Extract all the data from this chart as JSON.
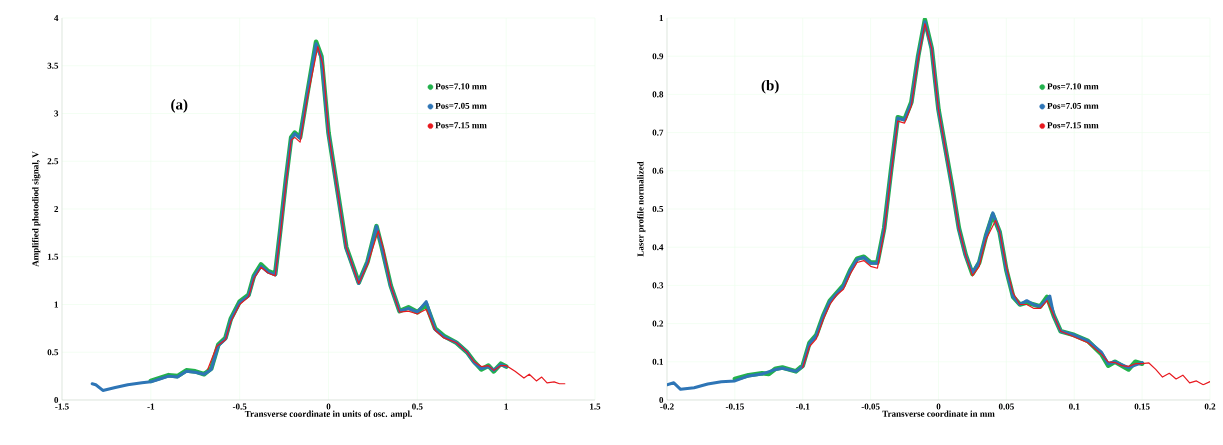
{
  "chart_data": [
    {
      "type": "line",
      "xlabel": "Transverse coordinate in units of osc. ampl.",
      "ylabel": "Amplified photodiod signal, V",
      "annotations": [
        "(a)"
      ],
      "xlim": [
        -1.5,
        1.5
      ],
      "ylim": [
        0,
        4
      ],
      "xticks": [
        -1.5,
        -1,
        -0.5,
        0,
        0.5,
        1,
        1.5
      ],
      "yticks": [
        0,
        0.5,
        1,
        1.5,
        2,
        2.5,
        3,
        3.5,
        4
      ],
      "grid": true,
      "legend": "top right",
      "series": [
        {
          "name": "Pos=7.10 mm",
          "color": "#22b14c",
          "x": [
            -1.0,
            -0.95,
            -0.9,
            -0.85,
            -0.8,
            -0.75,
            -0.7,
            -0.66,
            -0.62,
            -0.58,
            -0.55,
            -0.5,
            -0.45,
            -0.42,
            -0.38,
            -0.34,
            -0.3,
            -0.27,
            -0.24,
            -0.21,
            -0.19,
            -0.16,
            -0.12,
            -0.07,
            -0.04,
            0.0,
            0.05,
            0.1,
            0.17,
            0.22,
            0.27,
            0.3,
            0.35,
            0.4,
            0.45,
            0.5,
            0.55,
            0.6,
            0.65,
            0.72,
            0.78,
            0.82,
            0.86,
            0.9,
            0.93,
            0.97,
            1.0
          ],
          "values": [
            0.2,
            0.23,
            0.26,
            0.25,
            0.31,
            0.3,
            0.27,
            0.33,
            0.58,
            0.65,
            0.85,
            1.03,
            1.1,
            1.3,
            1.42,
            1.35,
            1.32,
            1.8,
            2.3,
            2.75,
            2.8,
            2.75,
            3.2,
            3.75,
            3.6,
            2.8,
            2.2,
            1.6,
            1.23,
            1.45,
            1.82,
            1.6,
            1.2,
            0.93,
            0.97,
            0.92,
            1.0,
            0.75,
            0.67,
            0.6,
            0.5,
            0.4,
            0.32,
            0.36,
            0.3,
            0.38,
            0.35
          ]
        },
        {
          "name": "Pos=7.05 mm",
          "color": "#2e75b6",
          "x": [
            -1.33,
            -1.31,
            -1.27,
            -1.2,
            -1.13,
            -1.05,
            -1.0,
            -0.95,
            -0.9,
            -0.85,
            -0.8,
            -0.75,
            -0.7,
            -0.66,
            -0.62,
            -0.58,
            -0.55,
            -0.5,
            -0.45,
            -0.42,
            -0.38,
            -0.34,
            -0.3,
            -0.27,
            -0.24,
            -0.21,
            -0.19,
            -0.16,
            -0.12,
            -0.07,
            -0.04,
            0.0,
            0.05,
            0.1,
            0.17,
            0.22,
            0.27,
            0.3,
            0.35,
            0.4,
            0.45,
            0.5,
            0.55,
            0.6,
            0.65,
            0.72,
            0.78,
            0.82,
            0.86,
            0.9,
            0.93,
            0.97,
            1.0
          ],
          "values": [
            0.17,
            0.16,
            0.1,
            0.13,
            0.16,
            0.18,
            0.19,
            0.22,
            0.25,
            0.24,
            0.3,
            0.29,
            0.27,
            0.32,
            0.57,
            0.64,
            0.84,
            1.02,
            1.09,
            1.29,
            1.4,
            1.34,
            1.31,
            1.79,
            2.29,
            2.74,
            2.79,
            2.74,
            3.19,
            3.73,
            3.58,
            2.79,
            2.19,
            1.59,
            1.22,
            1.45,
            1.82,
            1.6,
            1.19,
            0.93,
            0.96,
            0.92,
            1.03,
            0.74,
            0.66,
            0.6,
            0.5,
            0.39,
            0.33,
            0.35,
            0.31,
            0.37,
            0.35
          ]
        },
        {
          "name": "Pos=7.15 mm",
          "color": "#e8191f",
          "x": [
            -0.68,
            -0.63,
            -0.58,
            -0.55,
            -0.5,
            -0.45,
            -0.42,
            -0.38,
            -0.34,
            -0.3,
            -0.27,
            -0.24,
            -0.21,
            -0.19,
            -0.16,
            -0.12,
            -0.06,
            -0.03,
            0.0,
            0.05,
            0.1,
            0.17,
            0.22,
            0.28,
            0.31,
            0.35,
            0.4,
            0.45,
            0.5,
            0.55,
            0.6,
            0.65,
            0.72,
            0.78,
            0.82,
            0.86,
            0.9,
            0.93,
            0.97,
            1.0,
            1.05,
            1.1,
            1.13,
            1.17,
            1.2,
            1.23,
            1.27,
            1.3,
            1.33
          ],
          "values": [
            0.32,
            0.56,
            0.63,
            0.82,
            1.0,
            1.08,
            1.27,
            1.39,
            1.33,
            1.3,
            1.75,
            2.25,
            2.72,
            2.75,
            2.7,
            3.15,
            3.7,
            3.5,
            2.8,
            2.2,
            1.6,
            1.22,
            1.42,
            1.77,
            1.58,
            1.2,
            0.92,
            0.93,
            0.9,
            0.95,
            0.73,
            0.65,
            0.6,
            0.5,
            0.4,
            0.35,
            0.36,
            0.31,
            0.36,
            0.36,
            0.3,
            0.23,
            0.27,
            0.2,
            0.24,
            0.18,
            0.19,
            0.17,
            0.17
          ]
        }
      ]
    },
    {
      "type": "line",
      "xlabel": "Transverse coordinate in mm",
      "ylabel": "Laser profile normalized",
      "annotations": [
        "(b)"
      ],
      "xlim": [
        -0.2,
        0.2
      ],
      "ylim": [
        0,
        1
      ],
      "xticks": [
        -0.2,
        -0.15,
        -0.1,
        -0.05,
        0,
        0.05,
        0.1,
        0.15,
        0.2
      ],
      "yticks": [
        0,
        0.1,
        0.2,
        0.3,
        0.4,
        0.5,
        0.6,
        0.7,
        0.8,
        0.9,
        1
      ],
      "grid": true,
      "legend": "top right",
      "series": [
        {
          "name": "Pos=7.10 mm",
          "color": "#22b14c",
          "x": [
            -0.15,
            -0.14,
            -0.13,
            -0.125,
            -0.12,
            -0.115,
            -0.105,
            -0.1,
            -0.095,
            -0.09,
            -0.085,
            -0.08,
            -0.075,
            -0.07,
            -0.065,
            -0.06,
            -0.055,
            -0.05,
            -0.045,
            -0.04,
            -0.035,
            -0.03,
            -0.025,
            -0.02,
            -0.015,
            -0.01,
            -0.005,
            0.0,
            0.005,
            0.01,
            0.015,
            0.02,
            0.025,
            0.03,
            0.035,
            0.04,
            0.045,
            0.05,
            0.055,
            0.06,
            0.065,
            0.07,
            0.075,
            0.08,
            0.085,
            0.09,
            0.1,
            0.11,
            0.12,
            0.125,
            0.13,
            0.135,
            0.14,
            0.145,
            0.15
          ],
          "values": [
            0.055,
            0.065,
            0.07,
            0.068,
            0.082,
            0.085,
            0.075,
            0.09,
            0.15,
            0.17,
            0.22,
            0.26,
            0.28,
            0.3,
            0.34,
            0.37,
            0.375,
            0.36,
            0.36,
            0.45,
            0.6,
            0.74,
            0.735,
            0.78,
            0.9,
            0.995,
            0.92,
            0.76,
            0.66,
            0.56,
            0.45,
            0.38,
            0.33,
            0.36,
            0.43,
            0.485,
            0.44,
            0.34,
            0.27,
            0.25,
            0.255,
            0.25,
            0.245,
            0.27,
            0.22,
            0.18,
            0.17,
            0.155,
            0.12,
            0.09,
            0.1,
            0.09,
            0.08,
            0.1,
            0.095
          ]
        },
        {
          "name": "Pos=7.05 mm",
          "color": "#2e75b6",
          "x": [
            -0.2,
            -0.195,
            -0.19,
            -0.18,
            -0.17,
            -0.16,
            -0.15,
            -0.14,
            -0.13,
            -0.12,
            -0.115,
            -0.105,
            -0.1,
            -0.095,
            -0.09,
            -0.085,
            -0.08,
            -0.075,
            -0.07,
            -0.065,
            -0.06,
            -0.055,
            -0.05,
            -0.045,
            -0.04,
            -0.035,
            -0.03,
            -0.025,
            -0.02,
            -0.015,
            -0.01,
            -0.005,
            0.0,
            0.005,
            0.01,
            0.015,
            0.02,
            0.025,
            0.03,
            0.035,
            0.04,
            0.045,
            0.05,
            0.055,
            0.06,
            0.065,
            0.07,
            0.075,
            0.082,
            0.085,
            0.09,
            0.1,
            0.11,
            0.12,
            0.125,
            0.13,
            0.14,
            0.15
          ],
          "values": [
            0.04,
            0.045,
            0.028,
            0.032,
            0.042,
            0.048,
            0.05,
            0.063,
            0.068,
            0.08,
            0.083,
            0.075,
            0.088,
            0.148,
            0.168,
            0.218,
            0.258,
            0.278,
            0.298,
            0.338,
            0.368,
            0.373,
            0.358,
            0.358,
            0.448,
            0.598,
            0.738,
            0.733,
            0.778,
            0.898,
            0.99,
            0.918,
            0.758,
            0.658,
            0.558,
            0.448,
            0.378,
            0.333,
            0.362,
            0.432,
            0.49,
            0.44,
            0.34,
            0.27,
            0.25,
            0.26,
            0.25,
            0.245,
            0.272,
            0.22,
            0.18,
            0.17,
            0.155,
            0.125,
            0.095,
            0.1,
            0.085,
            0.098
          ]
        },
        {
          "name": "Pos=7.15 mm",
          "color": "#e8191f",
          "x": [
            -0.1,
            -0.095,
            -0.09,
            -0.085,
            -0.08,
            -0.075,
            -0.07,
            -0.065,
            -0.06,
            -0.055,
            -0.05,
            -0.045,
            -0.04,
            -0.035,
            -0.03,
            -0.025,
            -0.02,
            -0.015,
            -0.01,
            -0.005,
            0.0,
            0.005,
            0.01,
            0.015,
            0.02,
            0.025,
            0.03,
            0.035,
            0.042,
            0.045,
            0.05,
            0.055,
            0.06,
            0.065,
            0.07,
            0.075,
            0.08,
            0.085,
            0.09,
            0.1,
            0.11,
            0.12,
            0.125,
            0.13,
            0.135,
            0.14,
            0.145,
            0.15,
            0.155,
            0.16,
            0.165,
            0.17,
            0.175,
            0.18,
            0.185,
            0.19,
            0.195,
            0.2
          ],
          "values": [
            0.085,
            0.14,
            0.16,
            0.21,
            0.25,
            0.275,
            0.29,
            0.33,
            0.36,
            0.365,
            0.35,
            0.345,
            0.44,
            0.59,
            0.73,
            0.725,
            0.77,
            0.89,
            0.985,
            0.92,
            0.76,
            0.66,
            0.56,
            0.45,
            0.38,
            0.325,
            0.35,
            0.42,
            0.47,
            0.44,
            0.35,
            0.28,
            0.25,
            0.25,
            0.24,
            0.24,
            0.26,
            0.22,
            0.18,
            0.165,
            0.15,
            0.12,
            0.1,
            0.098,
            0.09,
            0.088,
            0.095,
            0.095,
            0.097,
            0.08,
            0.06,
            0.07,
            0.055,
            0.065,
            0.045,
            0.05,
            0.04,
            0.048
          ]
        }
      ]
    }
  ]
}
